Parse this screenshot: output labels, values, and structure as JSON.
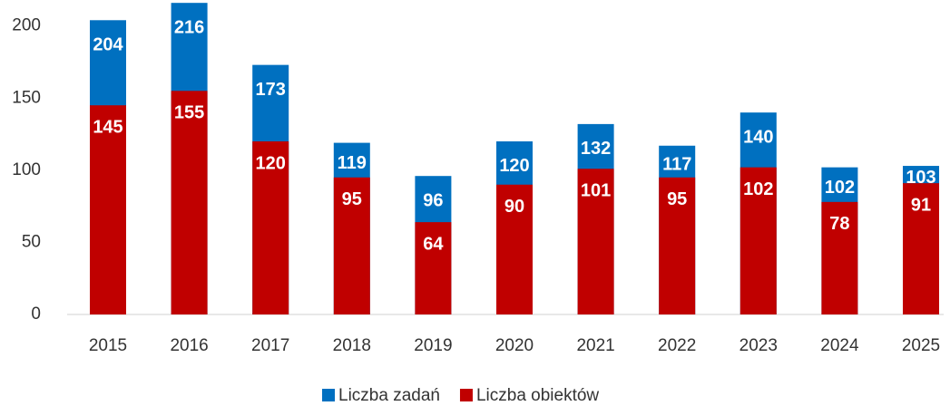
{
  "chart_data": {
    "type": "bar",
    "categories": [
      "2015",
      "2016",
      "2017",
      "2018",
      "2019",
      "2020",
      "2021",
      "2022",
      "2023",
      "2024",
      "2025"
    ],
    "series": [
      {
        "name": "Liczba zadań",
        "color": "#0070c0",
        "values": [
          204,
          216,
          173,
          119,
          96,
          120,
          132,
          117,
          140,
          102,
          103
        ]
      },
      {
        "name": "Liczba obiektów",
        "color": "#c00000",
        "values": [
          145,
          155,
          120,
          95,
          64,
          90,
          101,
          95,
          102,
          78,
          91
        ]
      }
    ],
    "ylim": [
      0,
      218
    ],
    "yticks": [
      0,
      50,
      100,
      150,
      200
    ],
    "grid": false,
    "legend": "bottom"
  }
}
